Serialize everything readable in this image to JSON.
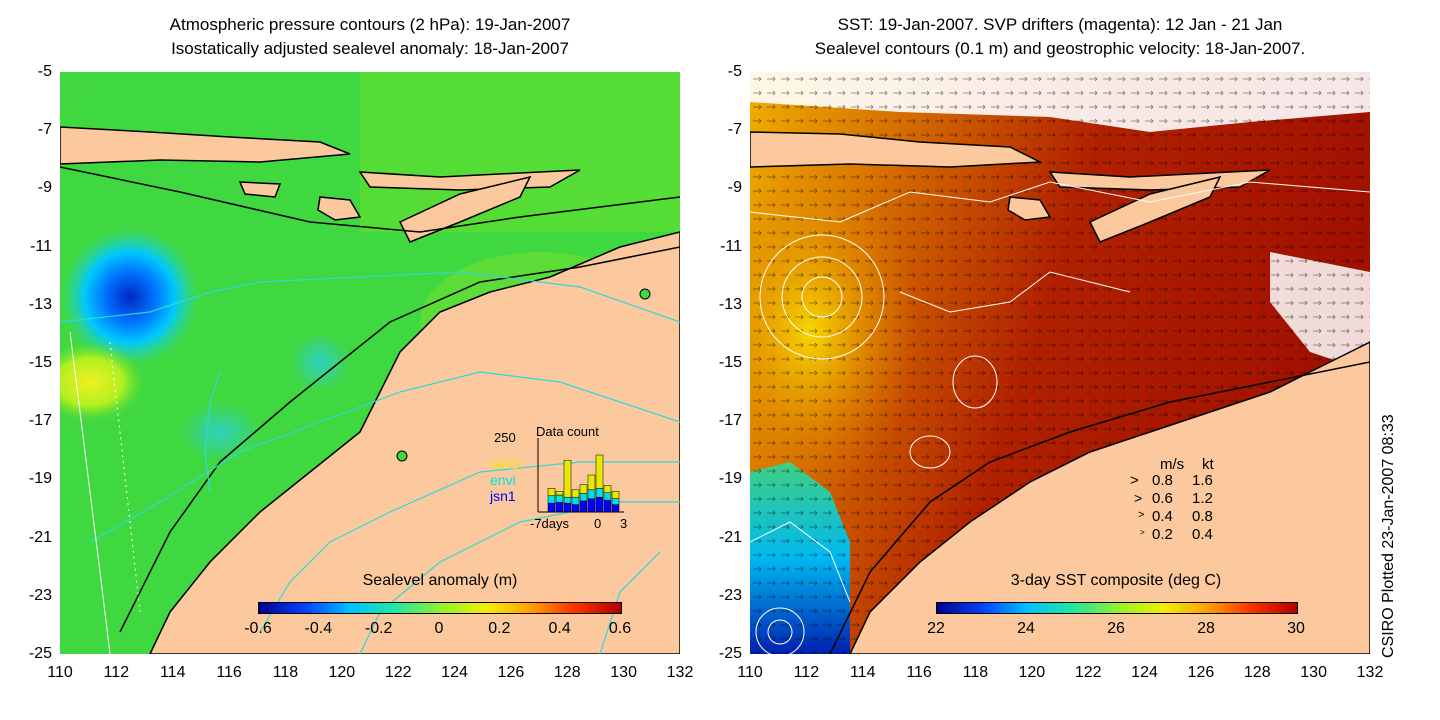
{
  "left_panel": {
    "title_line1": "Atmospheric pressure contours (2 hPa): 19-Jan-2007",
    "title_line2": "Isostatically adjusted sealevel anomaly: 18-Jan-2007",
    "colorbar_label": "Sealevel anomaly (m)",
    "colorbar_ticks": [
      "-0.6",
      "-0.4",
      "-0.2",
      "0",
      "0.2",
      "0.4",
      "0.6"
    ],
    "colorbar_colors": [
      "#00008b",
      "#0040ff",
      "#00c0ff",
      "#20e8a0",
      "#90f030",
      "#f0f000",
      "#ffa000",
      "#ff3000",
      "#b00000"
    ],
    "inset": {
      "title": "Data count",
      "y_max": "250",
      "x_labels": [
        "-7days",
        "0",
        "3"
      ],
      "series_labels": [
        "GFO",
        "envi",
        "jsn1"
      ],
      "series_colors": [
        "#e8e800",
        "#00e0e0",
        "#0000ff"
      ],
      "bars": [
        {
          "gfo": 0,
          "envi": 0,
          "jsn1": 0
        },
        {
          "gfo": 0.1,
          "envi": 0.1,
          "jsn1": 0.12
        },
        {
          "gfo": 0.05,
          "envi": 0.1,
          "jsn1": 0.13
        },
        {
          "gfo": 0.5,
          "envi": 0.08,
          "jsn1": 0.12
        },
        {
          "gfo": 0.1,
          "envi": 0.1,
          "jsn1": 0.1
        },
        {
          "gfo": 0.12,
          "envi": 0.1,
          "jsn1": 0.15
        },
        {
          "gfo": 0.2,
          "envi": 0.12,
          "jsn1": 0.18
        },
        {
          "gfo": 0.45,
          "envi": 0.12,
          "jsn1": 0.2
        },
        {
          "gfo": 0.1,
          "envi": 0.1,
          "jsn1": 0.16
        },
        {
          "gfo": 0.1,
          "envi": 0.08,
          "jsn1": 0.1
        }
      ]
    }
  },
  "right_panel": {
    "title_line1": "SST: 19-Jan-2007. SVP drifters (magenta): 12 Jan - 21 Jan",
    "title_line2": "Sealevel contours (0.1 m) and geostrophic velocity: 18-Jan-2007.",
    "colorbar_label": "3-day SST composite (deg C)",
    "colorbar_ticks": [
      "22",
      "24",
      "26",
      "28",
      "30"
    ],
    "colorbar_colors": [
      "#00008b",
      "#0040ff",
      "#00c0ff",
      "#20e8a0",
      "#90f030",
      "#f0f000",
      "#ffa000",
      "#ff3000",
      "#b00000"
    ],
    "velocity_legend": {
      "header_ms": "m/s",
      "header_kt": "kt",
      "rows": [
        {
          "ms": "0.8",
          "kt": "1.6"
        },
        {
          "ms": "0.6",
          "kt": "1.2"
        },
        {
          "ms": "0.4",
          "kt": "0.8"
        },
        {
          "ms": "0.2",
          "kt": "0.4"
        }
      ]
    }
  },
  "axes": {
    "lat_ticks": [
      "-5",
      "-7",
      "-9",
      "-11",
      "-13",
      "-15",
      "-17",
      "-19",
      "-21",
      "-23",
      "-25"
    ],
    "lon_ticks": [
      "110",
      "112",
      "114",
      "116",
      "118",
      "120",
      "122",
      "124",
      "126",
      "128",
      "130",
      "132"
    ]
  },
  "credit": "CSIRO Plotted 23-Jan-2007 08:33",
  "colors": {
    "land": "#fbc99d",
    "ocean_green": "#40d840",
    "coast": "#000000",
    "contour_cyan": "#30d8d8"
  }
}
